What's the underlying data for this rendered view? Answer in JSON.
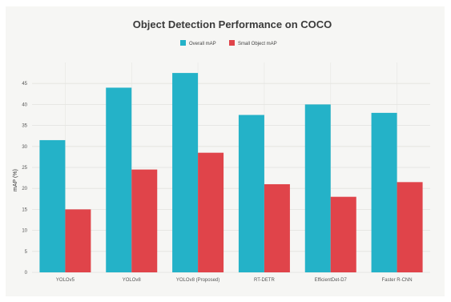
{
  "chart_data": {
    "type": "bar",
    "title": "Object Detection Performance on COCO",
    "ylabel": "mAP (%)",
    "xlabel": "",
    "ylim": [
      0,
      50
    ],
    "grid": true,
    "legend_position": "top-center",
    "categories": [
      "YOLOv5",
      "YOLOv8",
      "YOLOv8 (Proposed)",
      "RT-DETR",
      "EfficientDet-D7",
      "Faster R-CNN"
    ],
    "series": [
      {
        "name": "Overall mAP",
        "color": "#24b2c8",
        "values": [
          31.5,
          44,
          47.5,
          37.5,
          40,
          38
        ]
      },
      {
        "name": "Small Object mAP",
        "color": "#e0444a",
        "values": [
          15,
          24.5,
          28.5,
          21,
          18,
          21.5
        ]
      }
    ],
    "y_ticks": [
      0,
      5,
      10,
      15,
      20,
      25,
      30,
      35,
      40,
      45
    ]
  }
}
